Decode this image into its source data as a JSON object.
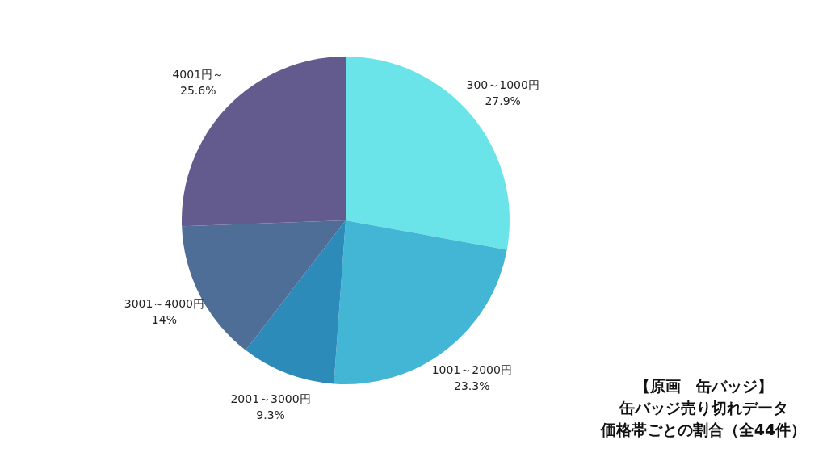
{
  "chart_data": {
    "type": "pie",
    "title": "【原画　缶バッジ】",
    "subtitle": "缶バッジ売り切れデータ",
    "annotations": [
      "価格帯ごとの割合（全44件）"
    ],
    "categories": [
      "300～1000円",
      "1001～2000円",
      "2001～3000円",
      "3001～4000円",
      "4001円～"
    ],
    "values": [
      27.9,
      23.3,
      9.3,
      14,
      25.6
    ],
    "value_labels": [
      "27.9%",
      "23.3%",
      "9.3%",
      "14%",
      "25.6%"
    ],
    "colors": [
      "#6ae4e8",
      "#43b6d6",
      "#2d8bba",
      "#4e6e98",
      "#635a8e"
    ],
    "legend": false
  }
}
